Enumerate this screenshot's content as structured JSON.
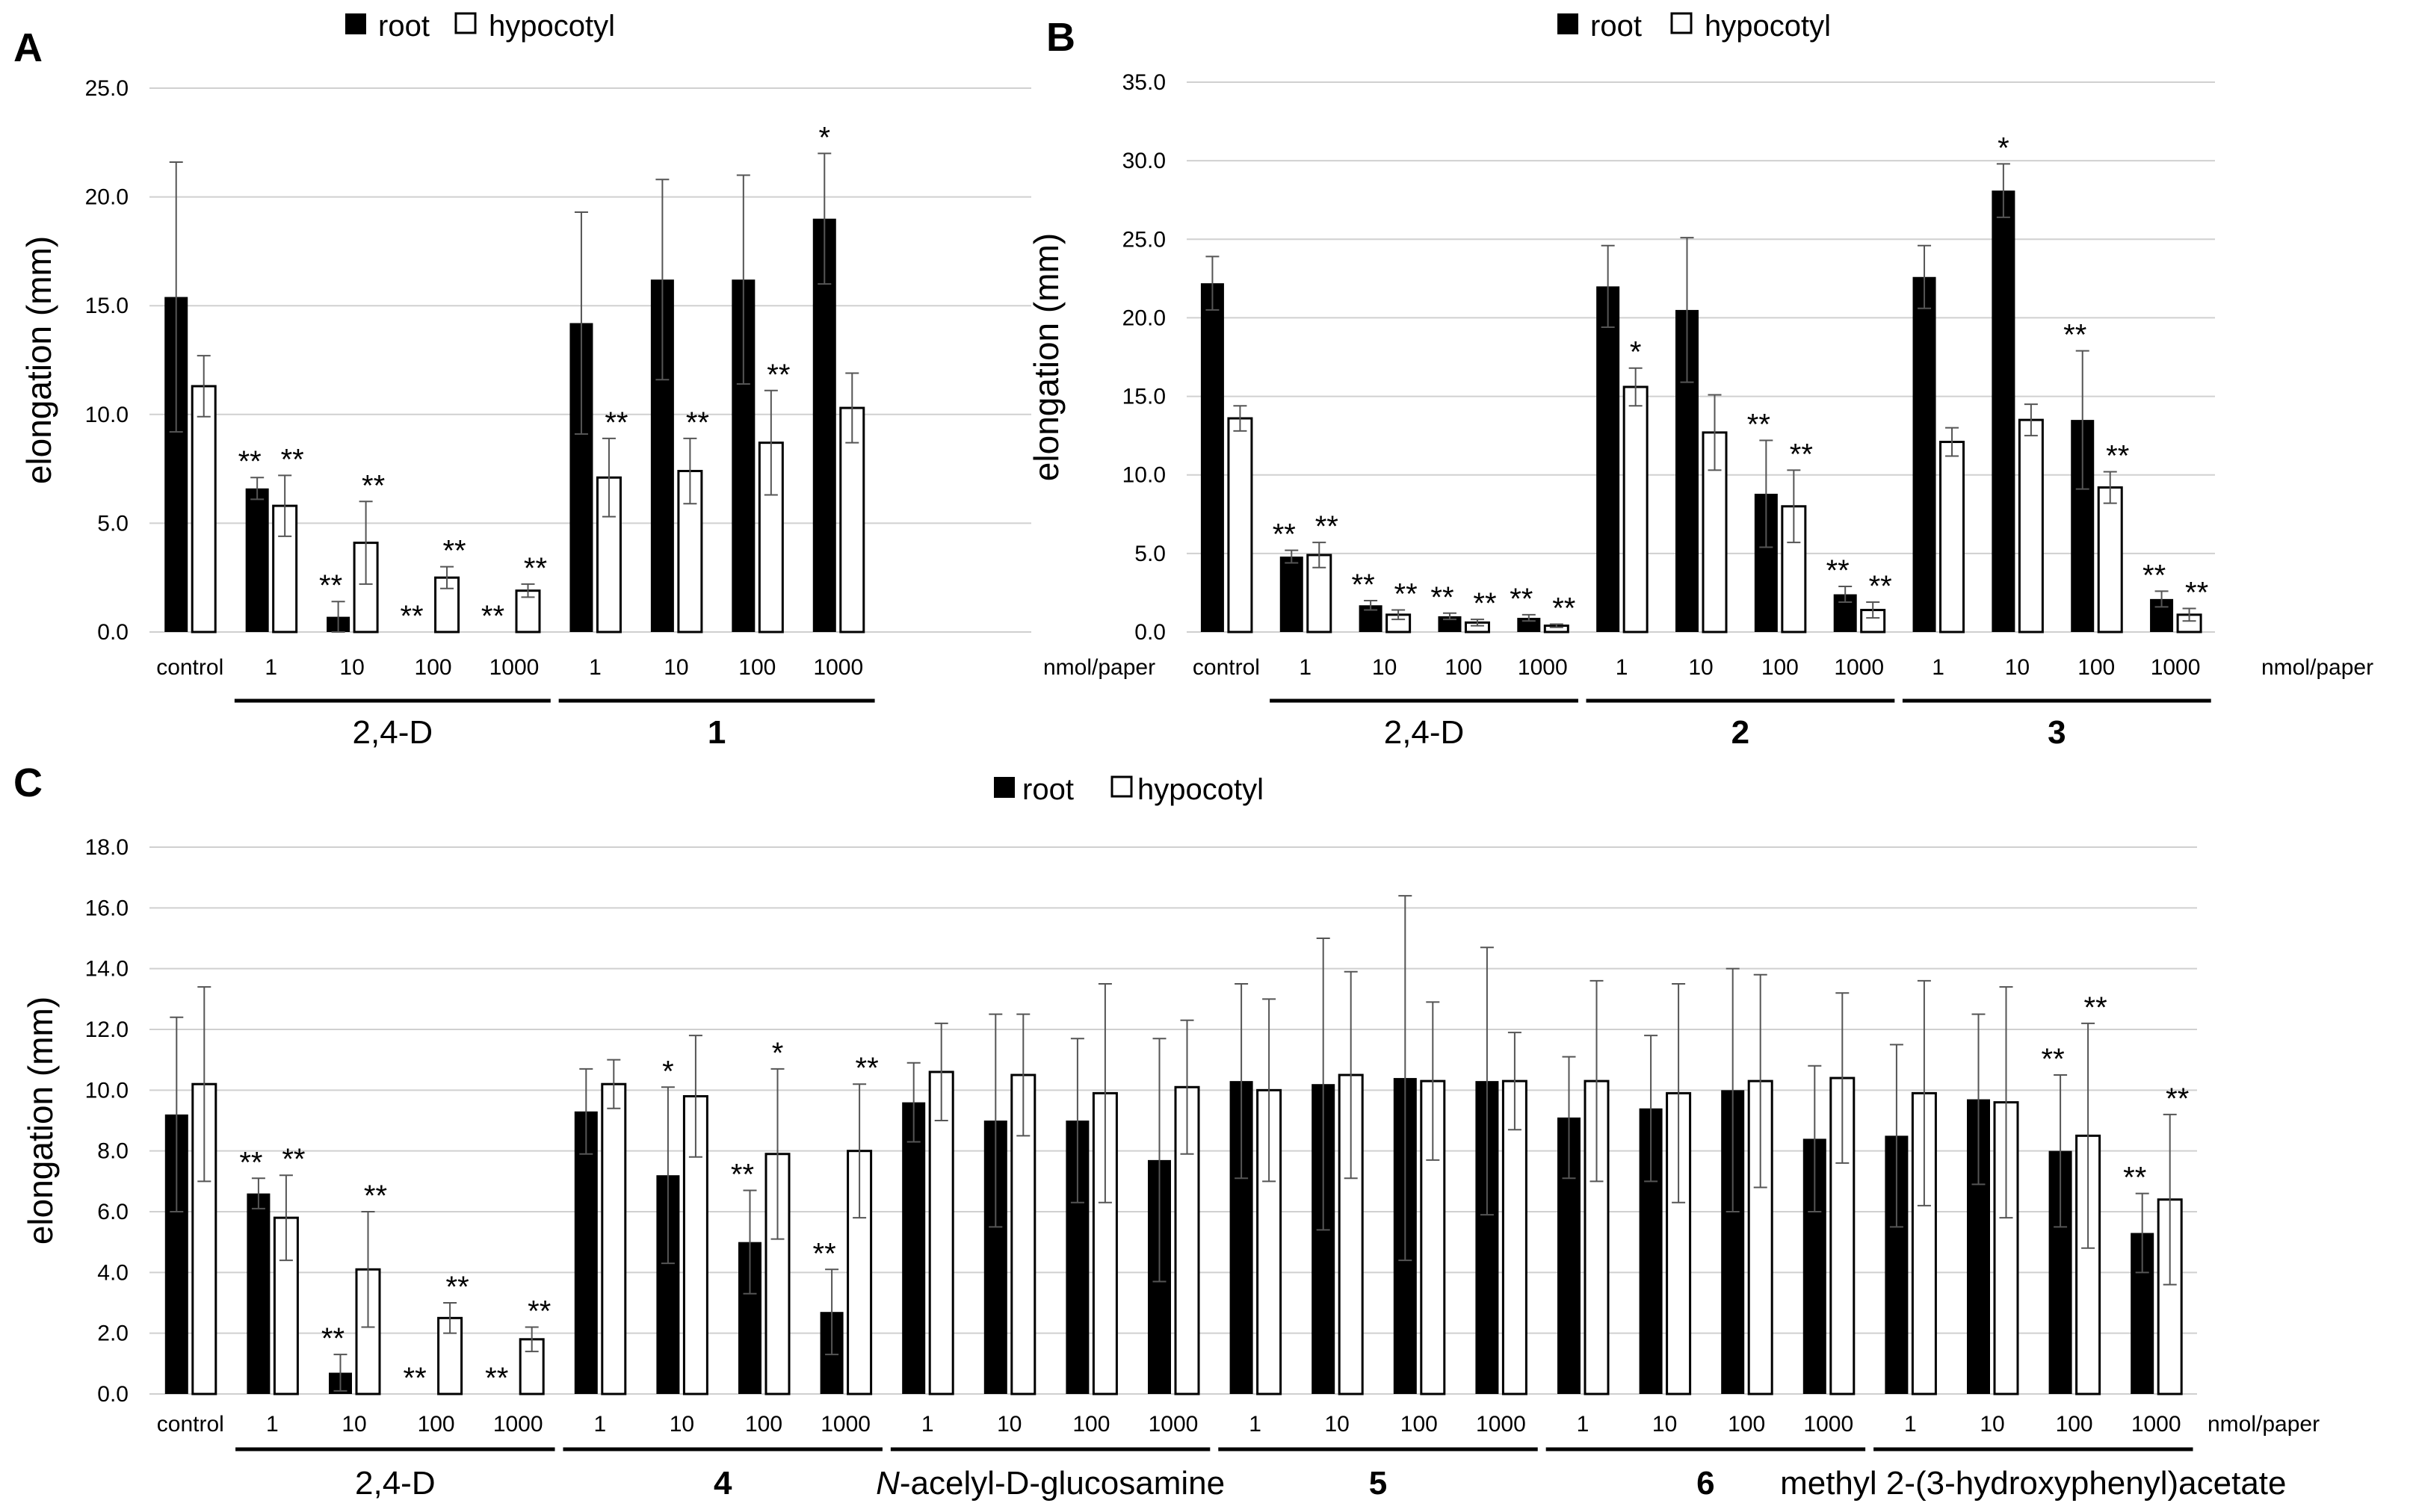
{
  "chart_data": [
    {
      "type": "bar",
      "panel": "A",
      "legend": [
        "root",
        "hypocotyl"
      ],
      "ylabel": "elongation (mm)",
      "ylim": [
        0,
        25
      ],
      "yticks": [
        "0.0",
        "5.0",
        "10.0",
        "15.0",
        "20.0",
        "25.0"
      ],
      "grid": true,
      "unit": "nmol/paper",
      "groups": [
        {
          "label": "",
          "bold": false,
          "categories": [
            "control"
          ]
        },
        {
          "label": "2,4-D",
          "bold": false,
          "categories": [
            "1",
            "10",
            "100",
            "1000"
          ]
        },
        {
          "label": "1",
          "bold": true,
          "categories": [
            "1",
            "10",
            "100",
            "1000"
          ]
        }
      ],
      "series": [
        {
          "name": "root",
          "values": [
            15.4,
            6.6,
            0.7,
            0.0,
            0.0,
            14.2,
            16.2,
            16.2,
            19.0
          ],
          "errors": [
            6.2,
            0.5,
            0.7,
            0.0,
            0.0,
            5.1,
            4.6,
            4.8,
            3.0
          ],
          "significance": [
            "",
            "**",
            "**",
            "**",
            "**",
            "",
            "",
            "",
            "*"
          ]
        },
        {
          "name": "hypocotyl",
          "values": [
            11.3,
            5.8,
            4.1,
            2.5,
            1.9,
            7.1,
            7.4,
            8.7,
            10.3
          ],
          "errors": [
            1.4,
            1.4,
            1.9,
            0.5,
            0.3,
            1.8,
            1.5,
            2.4,
            1.6
          ],
          "significance": [
            "",
            "**",
            "**",
            "**",
            "**",
            "**",
            "**",
            "**",
            ""
          ]
        }
      ]
    },
    {
      "type": "bar",
      "panel": "B",
      "legend": [
        "root",
        "hypocotyl"
      ],
      "ylabel": "elongation (mm)",
      "ylim": [
        0,
        35
      ],
      "yticks": [
        "0.0",
        "5.0",
        "10.0",
        "15.0",
        "20.0",
        "25.0",
        "30.0",
        "35.0"
      ],
      "grid": true,
      "unit": "nmol/paper",
      "groups": [
        {
          "label": "",
          "bold": false,
          "categories": [
            "control"
          ]
        },
        {
          "label": "2,4-D",
          "bold": false,
          "categories": [
            "1",
            "10",
            "100",
            "1000"
          ]
        },
        {
          "label": "2",
          "bold": true,
          "categories": [
            "1",
            "10",
            "100",
            "1000"
          ]
        },
        {
          "label": "3",
          "bold": true,
          "categories": [
            "1",
            "10",
            "100",
            "1000"
          ]
        }
      ],
      "series": [
        {
          "name": "root",
          "values": [
            22.2,
            4.8,
            1.7,
            1.0,
            0.9,
            22.0,
            20.5,
            8.8,
            2.4,
            22.6,
            28.1,
            13.5,
            2.1
          ],
          "errors": [
            1.7,
            0.4,
            0.3,
            0.2,
            0.2,
            2.6,
            4.6,
            3.4,
            0.5,
            2.0,
            1.7,
            4.4,
            0.5
          ],
          "significance": [
            "",
            "**",
            "**",
            "**",
            "**",
            "",
            "",
            "**",
            "**",
            "",
            "*",
            "**",
            "**"
          ]
        },
        {
          "name": "hypocotyl",
          "values": [
            13.6,
            4.9,
            1.1,
            0.6,
            0.4,
            15.6,
            12.7,
            8.0,
            1.4,
            12.1,
            13.5,
            9.2,
            1.1
          ],
          "errors": [
            0.8,
            0.8,
            0.3,
            0.2,
            0.1,
            1.2,
            2.4,
            2.3,
            0.5,
            0.9,
            1.0,
            1.0,
            0.4
          ],
          "significance": [
            "",
            "**",
            "**",
            "**",
            "**",
            "*",
            "",
            "**",
            "**",
            "",
            "",
            "**",
            "**"
          ]
        }
      ]
    },
    {
      "type": "bar",
      "panel": "C",
      "legend": [
        "root",
        "hypocotyl"
      ],
      "ylabel": "elongation (mm)",
      "ylim": [
        0,
        18
      ],
      "yticks": [
        "0.0",
        "2.0",
        "4.0",
        "6.0",
        "8.0",
        "10.0",
        "12.0",
        "14.0",
        "16.0",
        "18.0"
      ],
      "grid": true,
      "unit": "nmol/paper",
      "groups": [
        {
          "label": "",
          "bold": false,
          "italic_prefix": "",
          "categories": [
            "control"
          ]
        },
        {
          "label": "2,4-D",
          "bold": false,
          "italic_prefix": "",
          "categories": [
            "1",
            "10",
            "100",
            "1000"
          ]
        },
        {
          "label": "4",
          "bold": true,
          "italic_prefix": "",
          "categories": [
            "1",
            "10",
            "100",
            "1000"
          ]
        },
        {
          "label": "-acelyl-D-glucosamine",
          "bold": false,
          "italic_prefix": "N",
          "categories": [
            "1",
            "10",
            "100",
            "1000"
          ]
        },
        {
          "label": "5",
          "bold": true,
          "italic_prefix": "",
          "categories": [
            "1",
            "10",
            "100",
            "1000"
          ]
        },
        {
          "label": "6",
          "bold": true,
          "italic_prefix": "",
          "categories": [
            "1",
            "10",
            "100",
            "1000"
          ]
        },
        {
          "label": "methyl 2-(3-hydroxyphenyl)acetate",
          "bold": false,
          "italic_prefix": "",
          "categories": [
            "1",
            "10",
            "100",
            "1000"
          ]
        }
      ],
      "series": [
        {
          "name": "root",
          "values": [
            9.2,
            6.6,
            0.7,
            0.0,
            0.0,
            9.3,
            7.2,
            5.0,
            2.7,
            9.6,
            9.0,
            9.0,
            7.7,
            10.3,
            10.2,
            10.4,
            10.3,
            9.1,
            9.4,
            10.0,
            8.4,
            8.5,
            9.7,
            8.0,
            5.3
          ],
          "errors": [
            3.2,
            0.5,
            0.6,
            0.0,
            0.0,
            1.4,
            2.9,
            1.7,
            1.4,
            1.3,
            3.5,
            2.7,
            4.0,
            3.2,
            4.8,
            6.0,
            4.4,
            2.0,
            2.4,
            4.0,
            2.4,
            3.0,
            2.8,
            2.5,
            1.3
          ],
          "significance": [
            "",
            "**",
            "**",
            "**",
            "**",
            "",
            "*",
            "**",
            "**",
            "",
            "",
            "",
            "",
            "",
            "",
            "",
            "",
            "",
            "",
            "",
            "",
            "",
            "",
            "**",
            "**"
          ]
        },
        {
          "name": "hypocotyl",
          "values": [
            10.2,
            5.8,
            4.1,
            2.5,
            1.8,
            10.2,
            9.8,
            7.9,
            8.0,
            10.6,
            10.5,
            9.9,
            10.1,
            10.0,
            10.5,
            10.3,
            10.3,
            10.3,
            9.9,
            10.3,
            10.4,
            9.9,
            9.6,
            8.5,
            6.4
          ],
          "errors": [
            3.2,
            1.4,
            1.9,
            0.5,
            0.4,
            0.8,
            2.0,
            2.8,
            2.2,
            1.6,
            2.0,
            3.6,
            2.2,
            3.0,
            3.4,
            2.6,
            1.6,
            3.3,
            3.6,
            3.5,
            2.8,
            3.7,
            3.8,
            3.7,
            2.8
          ],
          "significance": [
            "",
            "**",
            "**",
            "**",
            "**",
            "",
            "",
            "*",
            "**",
            "",
            "",
            "",
            "",
            "",
            "",
            "",
            "",
            "",
            "",
            "",
            "",
            "",
            "",
            "**",
            "**"
          ]
        }
      ]
    }
  ]
}
